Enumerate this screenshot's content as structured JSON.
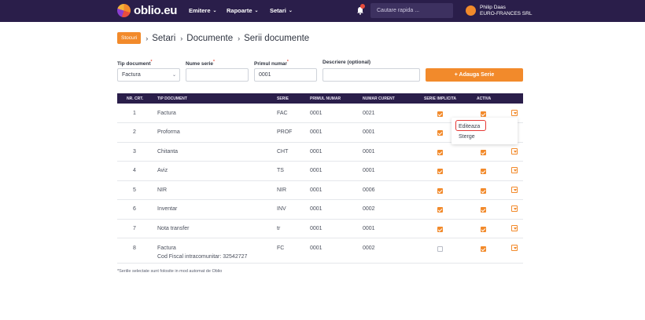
{
  "header": {
    "logo_text": "oblio.eu",
    "nav": [
      "Emitere",
      "Rapoarte",
      "Setari"
    ],
    "search_placeholder": "Cautare rapida ...",
    "user": {
      "name": "Philip Daas",
      "company": "EURO-FRANCES SRL"
    }
  },
  "breadcrumb": {
    "badge": "Stocuri",
    "items": [
      "Setari",
      "Documente",
      "Serii documente"
    ]
  },
  "form": {
    "tip_document": {
      "label": "Tip document",
      "value": "Factura"
    },
    "nume_serie": {
      "label": "Nume serie",
      "value": ""
    },
    "primul_numar": {
      "label": "Primul numar",
      "value": "0001"
    },
    "descriere": {
      "label": "Descriere (optional)",
      "value": ""
    },
    "add_button": "+ Adauga Serie"
  },
  "table": {
    "headers": [
      "NR. CRT.",
      "TIP DOCUMENT",
      "SERIE",
      "PRIMUL NUMAR",
      "NUMAR CURENT",
      "SERIE IMPLICITA",
      "ACTIVA"
    ],
    "rows": [
      {
        "nr": "1",
        "tip": "Factura",
        "sub": "",
        "serie": "FAC",
        "primul": "0001",
        "curent": "0021",
        "implicita": true,
        "activa": true
      },
      {
        "nr": "2",
        "tip": "Proforma",
        "sub": "",
        "serie": "PROF",
        "primul": "0001",
        "curent": "0001",
        "implicita": true,
        "activa": true
      },
      {
        "nr": "3",
        "tip": "Chitanta",
        "sub": "",
        "serie": "CHT",
        "primul": "0001",
        "curent": "0001",
        "implicita": true,
        "activa": true
      },
      {
        "nr": "4",
        "tip": "Aviz",
        "sub": "",
        "serie": "TS",
        "primul": "0001",
        "curent": "0001",
        "implicita": true,
        "activa": true
      },
      {
        "nr": "5",
        "tip": "NIR",
        "sub": "",
        "serie": "NIR",
        "primul": "0001",
        "curent": "0006",
        "implicita": true,
        "activa": true
      },
      {
        "nr": "6",
        "tip": "Inventar",
        "sub": "",
        "serie": "INV",
        "primul": "0001",
        "curent": "0002",
        "implicita": true,
        "activa": true
      },
      {
        "nr": "7",
        "tip": "Nota transfer",
        "sub": "",
        "serie": "tr",
        "primul": "0001",
        "curent": "0001",
        "implicita": true,
        "activa": true
      },
      {
        "nr": "8",
        "tip": "Factura",
        "sub": "Cod Fiscal intracomunitar: 32542727",
        "serie": "FC",
        "primul": "0001",
        "curent": "0002",
        "implicita": false,
        "activa": true
      }
    ]
  },
  "menu": {
    "items": [
      "Editeaza",
      "Sterge"
    ]
  },
  "footnote": "*Seriile selectate sunt folosite in mod automat de Oblio",
  "colors": {
    "accent": "#f28a2b",
    "header_bg": "#2a1e4a",
    "highlight": "#e53935"
  }
}
